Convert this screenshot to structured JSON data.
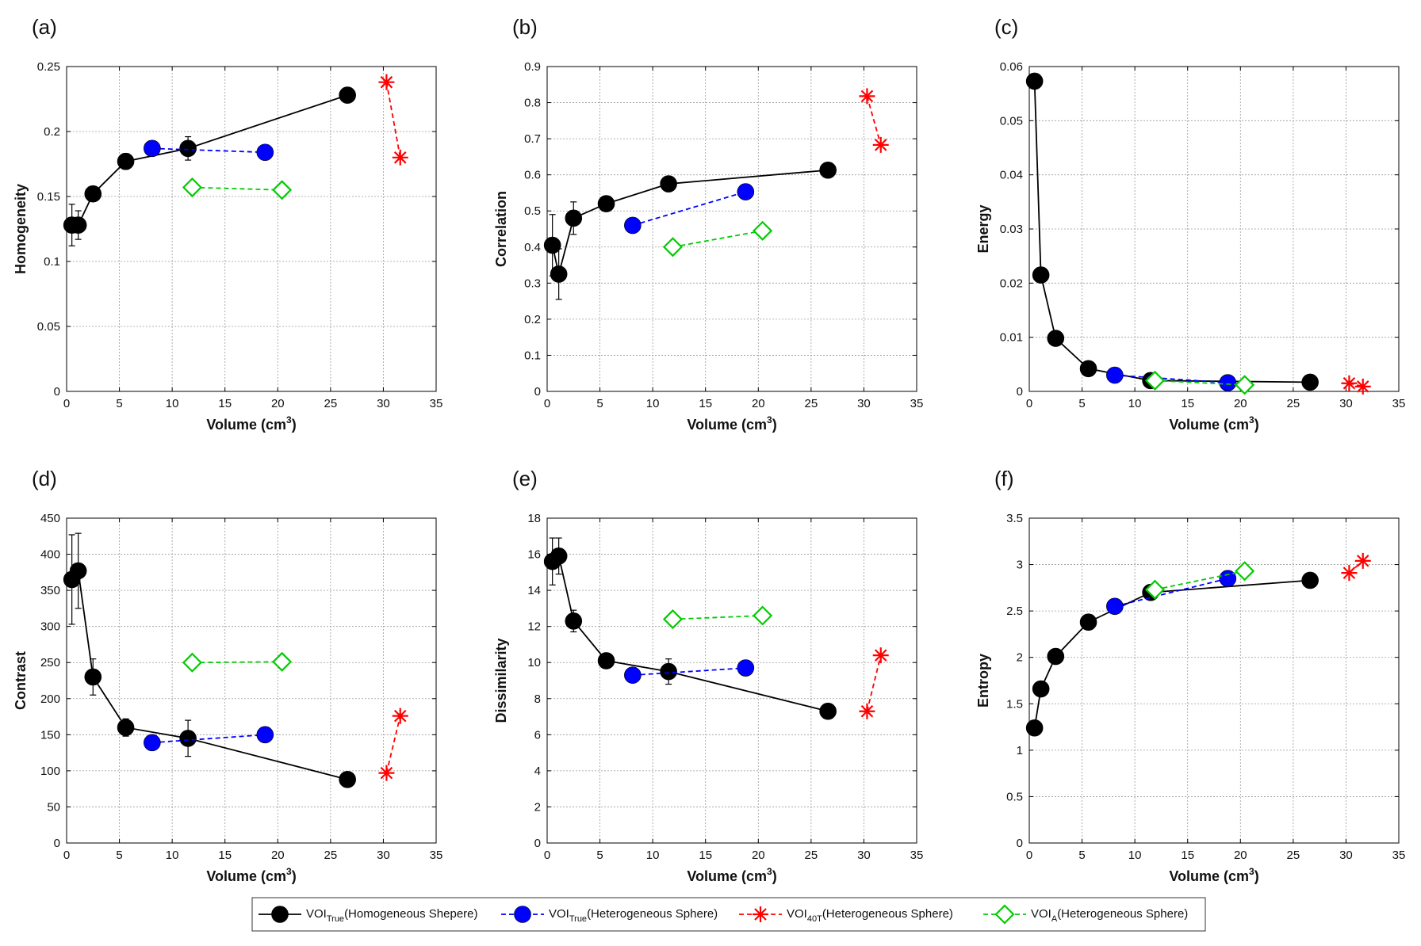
{
  "legend": {
    "entries": [
      {
        "prefix": "VOI",
        "sub": "True",
        "suffix": "(Homogeneous Shepere)",
        "color": "#000000",
        "marker": "circle",
        "dash": false
      },
      {
        "prefix": "VOI",
        "sub": "True",
        "suffix": "(Heterogeneous Sphere)",
        "color": "#0000ff",
        "marker": "circle",
        "dash": true
      },
      {
        "prefix": "VOI",
        "sub": "40T",
        "suffix": "(Heterogeneous Sphere)",
        "color": "#ff0000",
        "marker": "star",
        "dash": true
      },
      {
        "prefix": "VOI",
        "sub": "A",
        "suffix": "(Heterogeneous Sphere)",
        "color": "#00cc00",
        "marker": "diamond",
        "dash": true
      }
    ]
  },
  "chart_data": [
    {
      "panel": "(a)",
      "type": "line",
      "ylabel": "Homogeneity",
      "xlabel": "Volume (cm3)",
      "xlabel_main": "Volume (cm",
      "xlabel_sup": "3",
      "xlabel_end": ")",
      "xlim": [
        0,
        35
      ],
      "xticks": [
        0,
        5,
        10,
        15,
        20,
        25,
        30,
        35
      ],
      "ylim": [
        0,
        0.25
      ],
      "yticks": [
        0,
        0.05,
        0.1,
        0.15,
        0.2,
        0.25
      ],
      "ytick_labels": [
        "0",
        "0.05",
        "0.1",
        "0.15",
        "0.2",
        "0.25"
      ],
      "series": [
        {
          "name": "VOI True (Homogeneous Shepere)",
          "color": "#000000",
          "marker": "circle",
          "dash": false,
          "x": [
            0.5,
            1.1,
            2.5,
            5.6,
            11.5,
            26.6
          ],
          "y": [
            0.128,
            0.128,
            0.152,
            0.177,
            0.187,
            0.228
          ],
          "err": [
            0.016,
            0.011,
            0.004,
            0.006,
            0.009,
            0.003
          ]
        },
        {
          "name": "VOI True (Heterogeneous Sphere)",
          "color": "#0000ff",
          "marker": "circle",
          "dash": true,
          "x": [
            8.1,
            18.8
          ],
          "y": [
            0.187,
            0.184
          ]
        },
        {
          "name": "VOI 40T (Heterogeneous Sphere)",
          "color": "#ff0000",
          "marker": "star",
          "dash": true,
          "x": [
            30.3,
            31.6
          ],
          "y": [
            0.238,
            0.18
          ]
        },
        {
          "name": "VOI A (Heterogeneous Sphere)",
          "color": "#00cc00",
          "marker": "diamond",
          "dash": true,
          "x": [
            11.9,
            20.4
          ],
          "y": [
            0.157,
            0.155
          ]
        }
      ]
    },
    {
      "panel": "(b)",
      "type": "line",
      "ylabel": "Correlation",
      "xlabel": "Volume (cm3)",
      "xlabel_main": "Volume (cm",
      "xlabel_sup": "3",
      "xlabel_end": ")",
      "xlim": [
        0,
        35
      ],
      "xticks": [
        0,
        5,
        10,
        15,
        20,
        25,
        30,
        35
      ],
      "ylim": [
        0,
        0.9
      ],
      "yticks": [
        0,
        0.1,
        0.2,
        0.3,
        0.4,
        0.5,
        0.6,
        0.7,
        0.8,
        0.9
      ],
      "ytick_labels": [
        "0",
        "0.1",
        "0.2",
        "0.3",
        "0.4",
        "0.5",
        "0.6",
        "0.7",
        "0.8",
        "0.9"
      ],
      "series": [
        {
          "name": "VOI True (Homogeneous Shepere)",
          "color": "#000000",
          "marker": "circle",
          "dash": false,
          "x": [
            0.5,
            1.1,
            2.5,
            5.6,
            11.5,
            26.6
          ],
          "y": [
            0.405,
            0.325,
            0.48,
            0.52,
            0.575,
            0.613
          ],
          "err": [
            0.085,
            0.07,
            0.045,
            0.01,
            0.01,
            0.005
          ]
        },
        {
          "name": "VOI True (Heterogeneous Sphere)",
          "color": "#0000ff",
          "marker": "circle",
          "dash": true,
          "x": [
            8.1,
            18.8
          ],
          "y": [
            0.46,
            0.553
          ]
        },
        {
          "name": "VOI 40T (Heterogeneous Sphere)",
          "color": "#ff0000",
          "marker": "star",
          "dash": true,
          "x": [
            30.3,
            31.6
          ],
          "y": [
            0.818,
            0.683
          ]
        },
        {
          "name": "VOI A (Heterogeneous Sphere)",
          "color": "#00cc00",
          "marker": "diamond",
          "dash": true,
          "x": [
            11.9,
            20.4
          ],
          "y": [
            0.4,
            0.445
          ]
        }
      ]
    },
    {
      "panel": "(c)",
      "type": "line",
      "ylabel": "Energy",
      "xlabel": "Volume (cm3)",
      "xlabel_main": "Volume (cm",
      "xlabel_sup": "3",
      "xlabel_end": ")",
      "xlim": [
        0,
        35
      ],
      "xticks": [
        0,
        5,
        10,
        15,
        20,
        25,
        30,
        35
      ],
      "ylim": [
        0,
        0.06
      ],
      "yticks": [
        0,
        0.01,
        0.02,
        0.03,
        0.04,
        0.05,
        0.06
      ],
      "ytick_labels": [
        "0",
        "0.01",
        "0.02",
        "0.03",
        "0.04",
        "0.05",
        "0.06"
      ],
      "series": [
        {
          "name": "VOI True (Homogeneous Shepere)",
          "color": "#000000",
          "marker": "circle",
          "dash": false,
          "x": [
            0.5,
            1.1,
            2.5,
            5.6,
            11.5,
            26.6
          ],
          "y": [
            0.0573,
            0.0215,
            0.0098,
            0.0042,
            0.002,
            0.0017
          ]
        },
        {
          "name": "VOI True (Heterogeneous Sphere)",
          "color": "#0000ff",
          "marker": "circle",
          "dash": true,
          "x": [
            8.1,
            18.8
          ],
          "y": [
            0.003,
            0.0016
          ]
        },
        {
          "name": "VOI 40T (Heterogeneous Sphere)",
          "color": "#ff0000",
          "marker": "star",
          "dash": true,
          "x": [
            30.3,
            31.6
          ],
          "y": [
            0.0015,
            0.0009
          ]
        },
        {
          "name": "VOI A (Heterogeneous Sphere)",
          "color": "#00cc00",
          "marker": "diamond",
          "dash": true,
          "x": [
            11.9,
            20.4
          ],
          "y": [
            0.002,
            0.0012
          ]
        }
      ]
    },
    {
      "panel": "(d)",
      "type": "line",
      "ylabel": "Contrast",
      "xlabel": "Volume (cm3)",
      "xlabel_main": "Volume (cm",
      "xlabel_sup": "3",
      "xlabel_end": ")",
      "xlim": [
        0,
        35
      ],
      "xticks": [
        0,
        5,
        10,
        15,
        20,
        25,
        30,
        35
      ],
      "ylim": [
        0,
        450
      ],
      "yticks": [
        0,
        50,
        100,
        150,
        200,
        250,
        300,
        350,
        400,
        450
      ],
      "ytick_labels": [
        "0",
        "50",
        "100",
        "150",
        "200",
        "250",
        "300",
        "350",
        "400",
        "450"
      ],
      "series": [
        {
          "name": "VOI True (Homogeneous Shepere)",
          "color": "#000000",
          "marker": "circle",
          "dash": false,
          "x": [
            0.5,
            1.1,
            2.5,
            5.6,
            11.5,
            26.6
          ],
          "y": [
            365,
            377,
            230,
            160,
            145,
            88
          ],
          "err": [
            62,
            52,
            25,
            12,
            25,
            4
          ]
        },
        {
          "name": "VOI True (Heterogeneous Sphere)",
          "color": "#0000ff",
          "marker": "circle",
          "dash": true,
          "x": [
            8.1,
            18.8
          ],
          "y": [
            139,
            150
          ]
        },
        {
          "name": "VOI 40T (Heterogeneous Sphere)",
          "color": "#ff0000",
          "marker": "star",
          "dash": true,
          "x": [
            30.3,
            31.6
          ],
          "y": [
            97,
            176
          ]
        },
        {
          "name": "VOI A (Heterogeneous Sphere)",
          "color": "#00cc00",
          "marker": "diamond",
          "dash": true,
          "x": [
            11.9,
            20.4
          ],
          "y": [
            250,
            251
          ]
        }
      ]
    },
    {
      "panel": "(e)",
      "type": "line",
      "ylabel": "Dissimilarity",
      "xlabel": "Volume (cm3)",
      "xlabel_main": "Volume (cm",
      "xlabel_sup": "3",
      "xlabel_end": ")",
      "xlim": [
        0,
        35
      ],
      "xticks": [
        0,
        5,
        10,
        15,
        20,
        25,
        30,
        35
      ],
      "ylim": [
        0,
        18
      ],
      "yticks": [
        0,
        2,
        4,
        6,
        8,
        10,
        12,
        14,
        16,
        18
      ],
      "ytick_labels": [
        "0",
        "2",
        "4",
        "6",
        "8",
        "10",
        "12",
        "14",
        "16",
        "18"
      ],
      "series": [
        {
          "name": "VOI True (Homogeneous Shepere)",
          "color": "#000000",
          "marker": "circle",
          "dash": false,
          "x": [
            0.5,
            1.1,
            2.5,
            5.6,
            11.5,
            26.6
          ],
          "y": [
            15.6,
            15.9,
            12.3,
            10.1,
            9.5,
            7.3
          ],
          "err": [
            1.3,
            1.0,
            0.6,
            0.3,
            0.7,
            0.1
          ]
        },
        {
          "name": "VOI True (Heterogeneous Sphere)",
          "color": "#0000ff",
          "marker": "circle",
          "dash": true,
          "x": [
            8.1,
            18.8
          ],
          "y": [
            9.3,
            9.7
          ]
        },
        {
          "name": "VOI 40T (Heterogeneous Sphere)",
          "color": "#ff0000",
          "marker": "star",
          "dash": true,
          "x": [
            30.3,
            31.6
          ],
          "y": [
            7.3,
            10.4
          ]
        },
        {
          "name": "VOI A (Heterogeneous Sphere)",
          "color": "#00cc00",
          "marker": "diamond",
          "dash": true,
          "x": [
            11.9,
            20.4
          ],
          "y": [
            12.4,
            12.6
          ]
        }
      ]
    },
    {
      "panel": "(f)",
      "type": "line",
      "ylabel": "Entropy",
      "xlabel": "Volume (cm3)",
      "xlabel_main": "Volume (cm",
      "xlabel_sup": "3",
      "xlabel_end": ")",
      "xlim": [
        0,
        35
      ],
      "xticks": [
        0,
        5,
        10,
        15,
        20,
        25,
        30,
        35
      ],
      "ylim": [
        0,
        3.5
      ],
      "yticks": [
        0,
        0.5,
        1,
        1.5,
        2,
        2.5,
        3,
        3.5
      ],
      "ytick_labels": [
        "0",
        "0.5",
        "1",
        "1.5",
        "2",
        "2.5",
        "3",
        "3.5"
      ],
      "series": [
        {
          "name": "VOI True (Homogeneous Shepere)",
          "color": "#000000",
          "marker": "circle",
          "dash": false,
          "x": [
            0.5,
            1.1,
            2.5,
            5.6,
            11.5,
            26.6
          ],
          "y": [
            1.24,
            1.66,
            2.01,
            2.38,
            2.7,
            2.83
          ]
        },
        {
          "name": "VOI True (Heterogeneous Sphere)",
          "color": "#0000ff",
          "marker": "circle",
          "dash": true,
          "x": [
            8.1,
            18.8
          ],
          "y": [
            2.55,
            2.85
          ]
        },
        {
          "name": "VOI 40T (Heterogeneous Sphere)",
          "color": "#ff0000",
          "marker": "star",
          "dash": true,
          "x": [
            30.3,
            31.6
          ],
          "y": [
            2.91,
            3.04
          ]
        },
        {
          "name": "VOI A (Heterogeneous Sphere)",
          "color": "#00cc00",
          "marker": "diamond",
          "dash": true,
          "x": [
            11.9,
            20.4
          ],
          "y": [
            2.73,
            2.93
          ]
        }
      ]
    }
  ]
}
